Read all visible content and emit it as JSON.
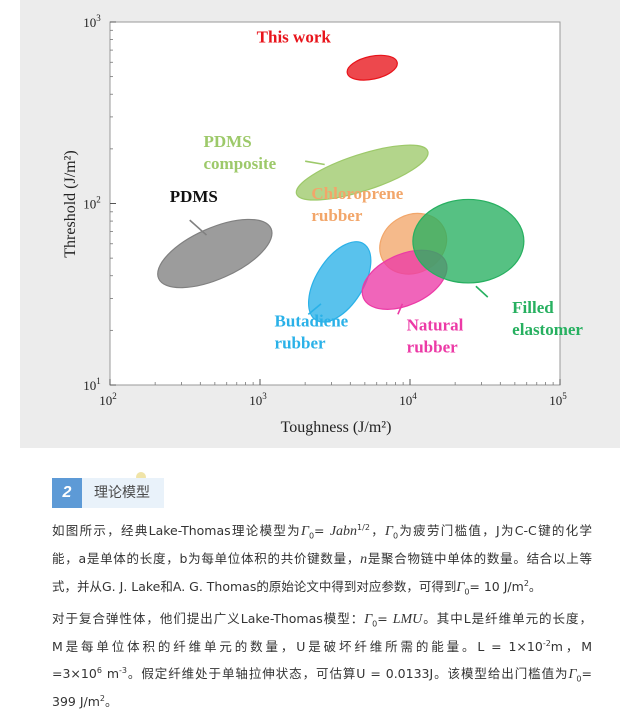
{
  "chart_data": {
    "type": "scatter",
    "xlabel": "Toughness (J/m²)",
    "ylabel": "Threshold (J/m²)",
    "x_scale": "log",
    "y_scale": "log",
    "xlim": [
      100,
      100000
    ],
    "ylim": [
      10,
      1000
    ],
    "x_ticks": [
      {
        "base": "10",
        "exp": "2",
        "value": 100
      },
      {
        "base": "10",
        "exp": "3",
        "value": 1000
      },
      {
        "base": "10",
        "exp": "4",
        "value": 10000
      },
      {
        "base": "10",
        "exp": "5",
        "value": 100000
      }
    ],
    "y_ticks": [
      {
        "base": "10",
        "exp": "1",
        "value": 10
      },
      {
        "base": "10",
        "exp": "2",
        "value": 100
      },
      {
        "base": "10",
        "exp": "3",
        "value": 1000
      }
    ],
    "grid": false,
    "series": [
      {
        "name": "This work",
        "color": "#e8141b",
        "x": 5600,
        "y": 560,
        "rx": 0.17,
        "ry": 0.063,
        "angle": -12
      },
      {
        "name": "PDMS composite",
        "color": "#9dc96a",
        "x": 4800,
        "y": 148,
        "rx": 0.46,
        "ry": 0.1,
        "angle": -18
      },
      {
        "name": "PDMS",
        "color": "#808080",
        "x": 500,
        "y": 53,
        "rx": 0.41,
        "ry": 0.14,
        "angle": -24
      },
      {
        "name": "Chloroprene rubber",
        "color": "#f2a66a",
        "x": 10500,
        "y": 60,
        "rx": 0.23,
        "ry": 0.16,
        "angle": -28
      },
      {
        "name": "Butadiene rubber",
        "color": "#2ab1e8",
        "x": 3400,
        "y": 37,
        "rx": 0.3,
        "ry": 0.13,
        "angle": -58
      },
      {
        "name": "Natural rubber",
        "color": "#ec3aa6",
        "x": 9200,
        "y": 38,
        "rx": 0.3,
        "ry": 0.14,
        "angle": -24
      },
      {
        "name": "Filled elastomer",
        "color": "#27b060",
        "x": 24500,
        "y": 62,
        "rx": 0.37,
        "ry": 0.23,
        "angle": 0
      }
    ],
    "labels": [
      {
        "series": "This work",
        "lines": [
          "This work"
        ],
        "x": 950,
        "y": 770
      },
      {
        "series": "PDMS composite",
        "lines": [
          "PDMS",
          "composite"
        ],
        "x": 420,
        "y": 205
      },
      {
        "series": "PDMS",
        "lines": [
          "PDMS"
        ],
        "x": 250,
        "y": 102
      },
      {
        "series": "Chloroprene rubber",
        "lines": [
          "Chloroprene",
          "rubber"
        ],
        "x": 2200,
        "y": 106
      },
      {
        "series": "Butadiene rubber",
        "lines": [
          "Butadiene",
          "rubber"
        ],
        "x": 1250,
        "y": 21
      },
      {
        "series": "Natural rubber",
        "lines": [
          "Natural",
          "rubber"
        ],
        "x": 9500,
        "y": 20
      },
      {
        "series": "Filled elastomer",
        "lines": [
          "Filled",
          "elastomer"
        ],
        "x": 48000,
        "y": 25
      }
    ],
    "pointers": [
      {
        "series": "PDMS",
        "x1": 340,
        "y1": 81,
        "x2": 440,
        "y2": 67
      },
      {
        "series": "PDMS composite",
        "x1": 2000,
        "y1": 171,
        "x2": 2700,
        "y2": 164
      },
      {
        "series": "Butadiene rubber",
        "x1": 2100,
        "y1": 24.5,
        "x2": 2550,
        "y2": 28
      },
      {
        "series": "Natural rubber",
        "x1": 8300,
        "y1": 24.5,
        "x2": 8900,
        "y2": 28
      },
      {
        "series": "Filled elastomer",
        "x1": 33000,
        "y1": 30.5,
        "x2": 27500,
        "y2": 35
      }
    ]
  },
  "section": {
    "number": "2",
    "title": "理论模型"
  },
  "para1": {
    "l1": {
      "a": "如图所示，经典Lake-Thomas理论模型为",
      "g1": "Γ",
      "s1": "0",
      "eq": "= ",
      "f1": "Jabn",
      "p1": "1/2",
      "b": "，",
      "g2": "Γ",
      "s2": "0",
      "c": "为疲劳门槛值，J为C-C键的化学"
    },
    "l2": {
      "a": "能，a是单体的长度，b为每单位体积的共价键数量，",
      "n": "n",
      "b": "是聚合物链中单体的数量。结合以上等"
    },
    "l3": {
      "a": "式，并从G. J. Lake和A. G. Thomas的原始论文中得到对应参数，可得到",
      "g": "Γ",
      "s": "0",
      "b": "= 10 J/m",
      "p": "2",
      "c": "。"
    }
  },
  "para2": {
    "l1": {
      "a": "对于复合弹性体，他们提出广义Lake-Thomas模型：",
      "g": "Γ",
      "s": "0",
      "eq": "= ",
      "f": "LMU",
      "b": "。其中L是纤维单元的长度，"
    },
    "l2": {
      "a": "M是每单位体积的纤维单元的数量，U是破坏纤维所需的能量。L = 1×10",
      "p1": "-2",
      "b": "m，M"
    },
    "l3": {
      "a": "=3×10",
      "p1": "6",
      "b": " m",
      "p2": "-3",
      "c": "。假定纤维处于单轴拉伸状态，可估算U = 0.0133J。该模型给出门槛值为",
      "g": "Γ",
      "s": "0",
      "d": "="
    },
    "l4": {
      "a": "399 J/m",
      "p": "2",
      "b": "。"
    }
  }
}
